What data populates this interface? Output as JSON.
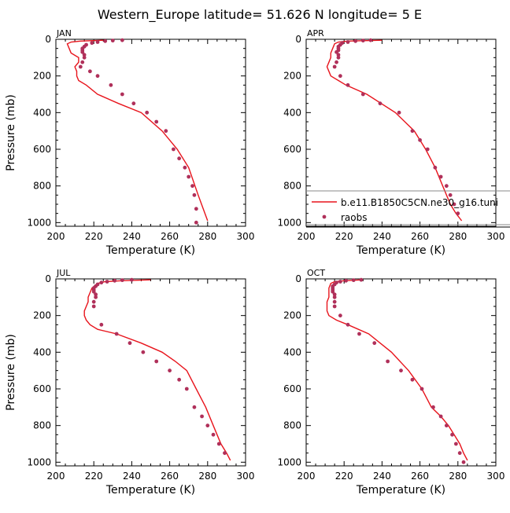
{
  "title": "Western_Europe  latitude= 51.626 N longitude= 5 E",
  "colors": {
    "model": "#e8141c",
    "obs": "#b0305a",
    "axis": "#000000",
    "legend_border": "#888888"
  },
  "legend": {
    "model_label": "b.e11.B1850C5CN.ne30_g16.tuni",
    "obs_label": "raobs"
  },
  "chart_data": [
    {
      "type": "line",
      "title": "JAN",
      "xlabel": "Temperature (K)",
      "ylabel": "Pressure (mb)",
      "xlim": [
        200,
        300
      ],
      "ylim": [
        1020,
        0
      ],
      "xticks": [
        200,
        220,
        240,
        260,
        280,
        300
      ],
      "yticks": [
        0,
        200,
        400,
        600,
        800,
        1000
      ],
      "series": [
        {
          "name": "b.e11.B1850C5CN.ne30_g16.tuni",
          "kind": "line",
          "x": [
            225,
            213,
            208,
            206,
            207,
            208,
            212,
            212,
            210,
            211,
            211,
            212,
            216,
            222,
            233,
            245,
            256,
            264,
            270,
            275,
            280
          ],
          "y": [
            5,
            10,
            15,
            25,
            50,
            75,
            100,
            125,
            150,
            175,
            200,
            225,
            250,
            300,
            350,
            400,
            500,
            600,
            700,
            850,
            990
          ]
        },
        {
          "name": "raobs",
          "kind": "scatter",
          "x": [
            235,
            230,
            226,
            222,
            219,
            216,
            215,
            214,
            214,
            214,
            215,
            215,
            214,
            213,
            218,
            222,
            229,
            235,
            241,
            248,
            253,
            258,
            262,
            265,
            268,
            270,
            272,
            273,
            274,
            274
          ],
          "y": [
            5,
            7,
            10,
            15,
            20,
            30,
            40,
            50,
            60,
            70,
            85,
            100,
            125,
            150,
            175,
            200,
            250,
            300,
            350,
            400,
            450,
            500,
            600,
            650,
            700,
            750,
            800,
            850,
            925,
            1000
          ]
        }
      ]
    },
    {
      "type": "line",
      "title": "APR",
      "xlabel": "Temperature (K)",
      "ylabel": "",
      "xlim": [
        200,
        300
      ],
      "ylim": [
        1020,
        0
      ],
      "xticks": [
        200,
        220,
        240,
        260,
        280,
        300
      ],
      "yticks": [
        0,
        200,
        400,
        600,
        800,
        1000
      ],
      "series": [
        {
          "name": "b.e11.B1850C5CN.ne30_g16.tuni",
          "kind": "line",
          "x": [
            240,
            222,
            217,
            215,
            214,
            213,
            213,
            212,
            211,
            212,
            213,
            217,
            221,
            232,
            247,
            257,
            263,
            268,
            272,
            276,
            279,
            282
          ],
          "y": [
            5,
            10,
            15,
            25,
            50,
            75,
            100,
            125,
            150,
            175,
            200,
            225,
            250,
            300,
            400,
            500,
            600,
            700,
            800,
            900,
            950,
            990
          ]
        },
        {
          "name": "raobs",
          "kind": "scatter",
          "x": [
            234,
            230,
            226,
            222,
            219,
            218,
            217,
            217,
            217,
            216,
            217,
            217,
            216,
            215,
            218,
            222,
            230,
            239,
            249,
            256,
            260,
            264,
            268,
            271,
            274,
            276,
            278,
            280
          ],
          "y": [
            5,
            7,
            10,
            15,
            20,
            30,
            40,
            50,
            60,
            70,
            85,
            100,
            125,
            150,
            200,
            250,
            300,
            350,
            400,
            500,
            550,
            600,
            700,
            750,
            800,
            850,
            900,
            950
          ]
        }
      ]
    },
    {
      "type": "line",
      "title": "JUL",
      "xlabel": "Temperature (K)",
      "ylabel": "Pressure (mb)",
      "xlim": [
        200,
        300
      ],
      "ylim": [
        1020,
        0
      ],
      "xticks": [
        200,
        220,
        240,
        260,
        280,
        300
      ],
      "yticks": [
        0,
        200,
        400,
        600,
        800,
        1000
      ],
      "series": [
        {
          "name": "b.e11.B1850C5CN.ne30_g16.tuni",
          "kind": "line",
          "x": [
            250,
            235,
            226,
            222,
            219,
            218,
            217,
            217,
            216,
            215,
            215,
            216,
            218,
            222,
            232,
            245,
            256,
            263,
            269,
            274,
            279,
            283,
            287,
            290,
            292
          ],
          "y": [
            5,
            10,
            15,
            25,
            50,
            75,
            100,
            125,
            150,
            175,
            200,
            225,
            250,
            275,
            300,
            350,
            400,
            450,
            500,
            600,
            700,
            800,
            900,
            950,
            990
          ]
        },
        {
          "name": "raobs",
          "kind": "scatter",
          "x": [
            240,
            235,
            231,
            227,
            224,
            222,
            221,
            220,
            220,
            220,
            221,
            221,
            220,
            220,
            224,
            232,
            239,
            246,
            253,
            260,
            265,
            269,
            273,
            277,
            280,
            283,
            286,
            289
          ],
          "y": [
            5,
            7,
            10,
            15,
            20,
            30,
            40,
            50,
            60,
            70,
            85,
            100,
            125,
            150,
            250,
            300,
            350,
            400,
            450,
            500,
            550,
            600,
            700,
            750,
            800,
            850,
            900,
            950
          ]
        }
      ]
    },
    {
      "type": "line",
      "title": "OCT",
      "xlabel": "Temperature (K)",
      "ylabel": "",
      "xlim": [
        200,
        300
      ],
      "ylim": [
        1020,
        0
      ],
      "xticks": [
        200,
        220,
        240,
        260,
        280,
        300
      ],
      "yticks": [
        0,
        200,
        400,
        600,
        800,
        1000
      ],
      "series": [
        {
          "name": "b.e11.B1850C5CN.ne30_g16.tuni",
          "kind": "line",
          "x": [
            230,
            220,
            215,
            213,
            212,
            212,
            212,
            211,
            211,
            211,
            212,
            216,
            222,
            233,
            245,
            254,
            261,
            266,
            271,
            275,
            278,
            281,
            283,
            285
          ],
          "y": [
            5,
            10,
            15,
            25,
            50,
            75,
            100,
            125,
            150,
            175,
            200,
            225,
            250,
            300,
            400,
            500,
            600,
            700,
            750,
            800,
            850,
            900,
            950,
            990
          ]
        },
        {
          "name": "raobs",
          "kind": "scatter",
          "x": [
            229,
            225,
            221,
            218,
            216,
            215,
            214,
            214,
            214,
            214,
            215,
            215,
            215,
            215,
            218,
            222,
            228,
            236,
            243,
            250,
            256,
            261,
            267,
            271,
            274,
            277,
            279,
            281,
            283
          ],
          "y": [
            5,
            7,
            10,
            15,
            20,
            30,
            40,
            50,
            60,
            70,
            85,
            100,
            125,
            150,
            200,
            250,
            300,
            350,
            450,
            500,
            550,
            600,
            700,
            750,
            800,
            850,
            900,
            950,
            1000
          ]
        }
      ]
    }
  ]
}
